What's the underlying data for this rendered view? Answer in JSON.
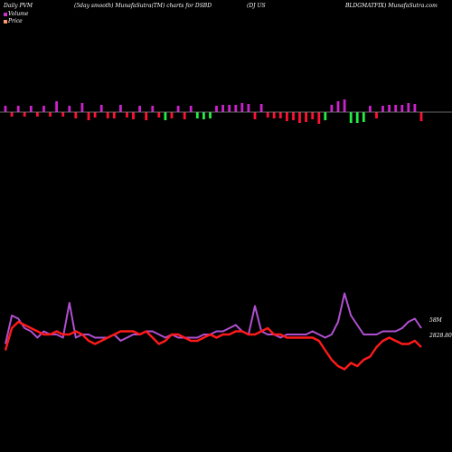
{
  "header": {
    "t1": "Daily PVM",
    "t2": "(5day smooth) MunafaSutra(TM) charts for DSBD",
    "t3": "(DJ US",
    "t4": "BLDGMATFIX) MunafaSutra.com"
  },
  "legend": {
    "volume_label": "Volume",
    "price_label": "Price",
    "volume_color": "#cc33cc",
    "price_color": "#ff9966"
  },
  "labels": {
    "volume_value": "58M",
    "price_value": "2828.80"
  },
  "colors": {
    "background": "#000000",
    "bar_up": "#cc22cc",
    "bar_down": "#ff1133",
    "bar_green": "#22ee44",
    "baseline": "#888888",
    "volume_line": "#b050d0",
    "price_line": "#ff1a1a"
  },
  "chart_data": [
    {
      "type": "bar",
      "title": "Daily PVM (5day smooth)",
      "series": [
        {
          "values": [
            7,
            -5,
            7,
            -5,
            7,
            -5,
            7,
            -5,
            12,
            -5,
            7,
            -7,
            10,
            -9,
            -6,
            8,
            -7,
            -7,
            8,
            -6,
            -8,
            7,
            -9,
            7,
            -6,
            -9,
            -7,
            7,
            -8,
            7,
            -7,
            -8,
            -7,
            7,
            8,
            8,
            8,
            10,
            9,
            -8,
            9,
            -6,
            -7,
            -7,
            -10,
            -9,
            -12,
            -11,
            -8,
            -13,
            -9,
            8,
            12,
            14,
            -12,
            -12,
            -11,
            7,
            -7,
            7,
            8,
            8,
            8,
            10,
            9,
            -10
          ],
          "colors": [
            "up",
            "down",
            "up",
            "down",
            "up",
            "down",
            "up",
            "down",
            "up",
            "down",
            "up",
            "down",
            "up",
            "down",
            "down",
            "up",
            "down",
            "down",
            "up",
            "down",
            "down",
            "up",
            "down",
            "up",
            "down",
            "green",
            "down",
            "up",
            "down",
            "up",
            "green",
            "green",
            "green",
            "up",
            "up",
            "up",
            "up",
            "up",
            "up",
            "down",
            "up",
            "down",
            "down",
            "down",
            "down",
            "down",
            "down",
            "down",
            "down",
            "down",
            "green",
            "up",
            "up",
            "up",
            "green",
            "green",
            "green",
            "up",
            "down",
            "up",
            "up",
            "up",
            "up",
            "up",
            "up",
            "down"
          ]
        }
      ]
    },
    {
      "type": "line",
      "series": [
        {
          "name": "Volume",
          "values": [
            67,
            76,
            75,
            72,
            71,
            69,
            71,
            70,
            70,
            69,
            80,
            69,
            70,
            70,
            69,
            69,
            69,
            70,
            68,
            69,
            70,
            70,
            71,
            71,
            70,
            69,
            70,
            69,
            69,
            69,
            69,
            70,
            70,
            71,
            71,
            72,
            73,
            71,
            70,
            79,
            71,
            70,
            70,
            69,
            70,
            70,
            70,
            70,
            71,
            70,
            69,
            70,
            74,
            83,
            76,
            73,
            70,
            70,
            70,
            71,
            71,
            71,
            72,
            74,
            75,
            72
          ]
        },
        {
          "name": "Price",
          "values": [
            65,
            72,
            74,
            73,
            72,
            71,
            70,
            70,
            71,
            70,
            70,
            71,
            70,
            68,
            67,
            68,
            69,
            70,
            71,
            71,
            71,
            70,
            71,
            69,
            67,
            68,
            70,
            70,
            69,
            68,
            68,
            69,
            70,
            69,
            70,
            70,
            71,
            71,
            70,
            70,
            71,
            72,
            70,
            70,
            69,
            69,
            69,
            69,
            69,
            68,
            65,
            62,
            60,
            59,
            61,
            60,
            62,
            63,
            66,
            68,
            69,
            68,
            67,
            67,
            68,
            66
          ]
        }
      ],
      "ylim": [
        50,
        90
      ]
    }
  ]
}
